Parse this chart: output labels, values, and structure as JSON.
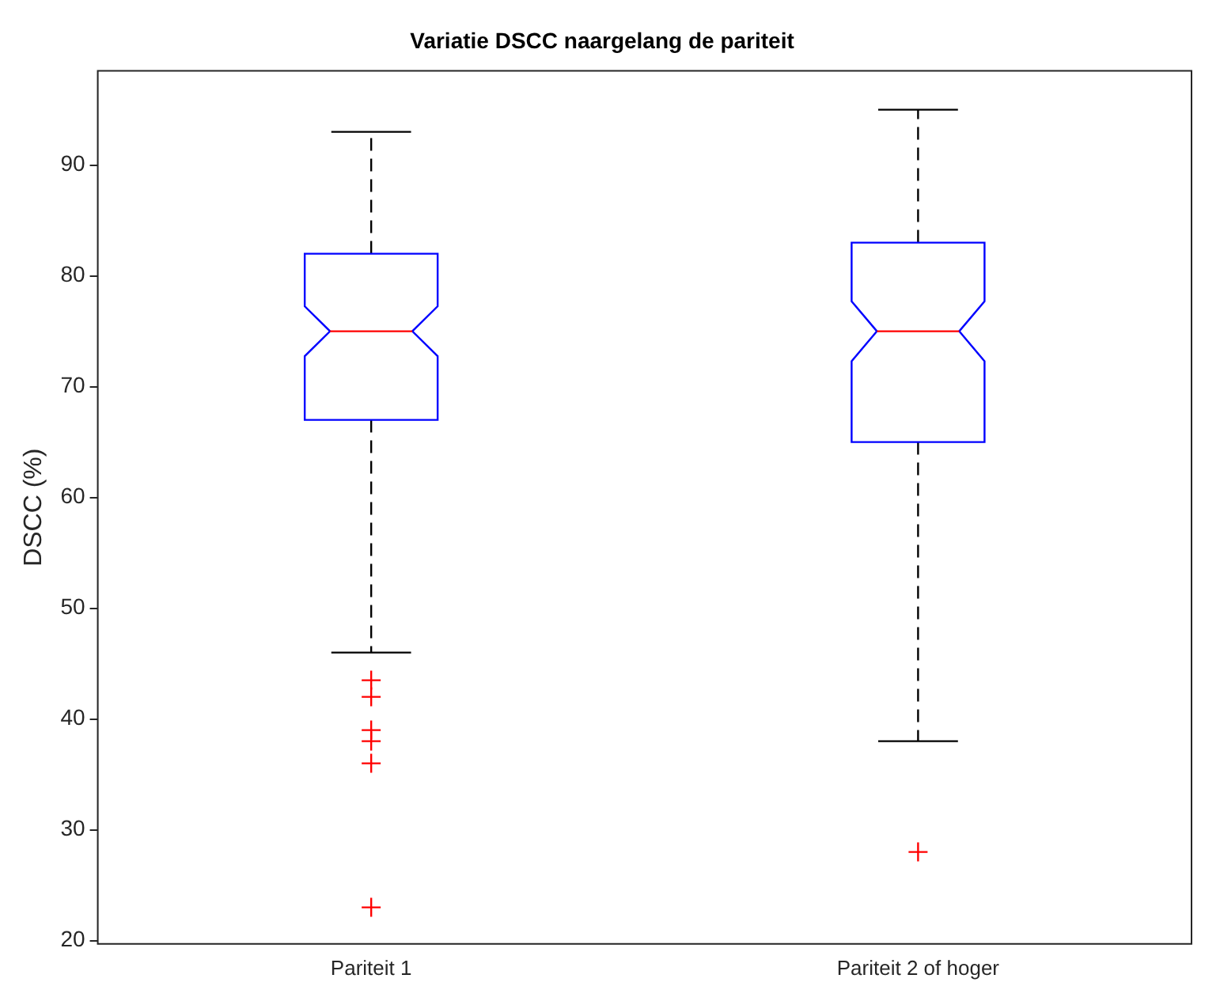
{
  "chart_data": {
    "type": "box",
    "title": "Variatie DSCC naargelang de pariteit",
    "ylabel": "DSCC (%)",
    "categories": [
      "Pariteit 1",
      "Pariteit 2 of hoger"
    ],
    "color": "#0000ff",
    "boxes": [
      {
        "low": 46,
        "q1": 67,
        "median": 75,
        "q3": 82,
        "high": 93,
        "outliers": [
          43.5,
          42,
          39,
          38,
          36,
          23
        ]
      },
      {
        "low": 38,
        "q1": 65,
        "median": 75,
        "q3": 83,
        "high": 95,
        "outliers": [
          28
        ]
      }
    ],
    "ylim": [
      19.7,
      98.5
    ],
    "yticks": [
      20,
      30,
      40,
      50,
      60,
      70,
      80,
      90
    ],
    "grid": false,
    "legend": false
  }
}
